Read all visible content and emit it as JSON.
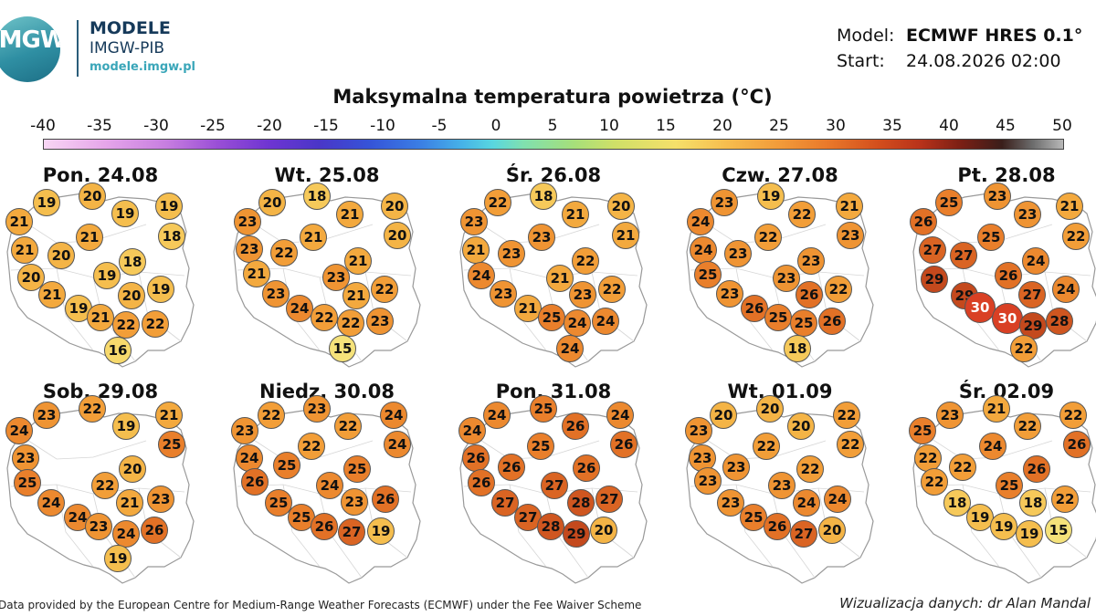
{
  "logo": {
    "mark_text": "IMGW",
    "title": "MODELE",
    "subtitle": "IMGW-PIB",
    "url": "modele.imgw.pl"
  },
  "model_info": {
    "model_label": "Model:",
    "model_value": "ECMWF HRES 0.1°",
    "start_label": "Start:",
    "start_value": "24.08.2026 02:00"
  },
  "title": "Maksymalna temperatura powietrza (°C)",
  "colorbar": {
    "labels": [
      "-40",
      "-35",
      "-30",
      "-25",
      "-20",
      "-15",
      "-10",
      "-5",
      "0",
      "5",
      "10",
      "15",
      "20",
      "25",
      "30",
      "35",
      "40",
      "45",
      "50"
    ]
  },
  "colors": {
    "t14": "#f3ec8e",
    "t15": "#f5e27a",
    "t16": "#f7d96c",
    "t18": "#f6c95a",
    "t19": "#f5be4e",
    "t20": "#f4b446",
    "t21": "#f3a93e",
    "t22": "#f29e38",
    "t23": "#ef9433",
    "t24": "#ec892f",
    "t25": "#e97f2b",
    "t26": "#e27126",
    "t27": "#da6423",
    "t28": "#cf5620",
    "t29": "#c4491d",
    "t30": "#d94024"
  },
  "days": [
    {
      "title": "Pon. 24.08",
      "temps": [
        19,
        20,
        19,
        19,
        21,
        18,
        21,
        21,
        20,
        18,
        20,
        19,
        19,
        20,
        21,
        19,
        21,
        22,
        22,
        16
      ]
    },
    {
      "title": "Wt. 25.08",
      "temps": [
        20,
        18,
        21,
        20,
        23,
        20,
        21,
        23,
        22,
        21,
        21,
        23,
        22,
        21,
        23,
        24,
        22,
        22,
        23,
        15
      ]
    },
    {
      "title": "Śr. 26.08",
      "temps": [
        22,
        18,
        21,
        20,
        23,
        21,
        23,
        21,
        23,
        22,
        24,
        21,
        22,
        23,
        23,
        21,
        25,
        24,
        24,
        24,
        14
      ]
    },
    {
      "title": "Czw. 27.08",
      "temps": [
        23,
        19,
        22,
        21,
        24,
        23,
        22,
        24,
        23,
        23,
        25,
        23,
        22,
        26,
        23,
        26,
        25,
        25,
        26,
        18
      ]
    },
    {
      "title": "Pt. 28.08",
      "temps": [
        25,
        23,
        21,
        23,
        26,
        25,
        22,
        27,
        27,
        24,
        29,
        26,
        29,
        27,
        24,
        30,
        30,
        29,
        28,
        22
      ]
    },
    {
      "title": "Sob. 29.08",
      "temps": [
        23,
        22,
        19,
        21,
        24,
        25,
        23,
        20,
        25,
        22,
        24,
        21,
        23,
        24,
        23,
        24,
        26,
        19
      ]
    },
    {
      "title": "Niedz. 30.08",
      "temps": [
        22,
        23,
        22,
        24,
        23,
        24,
        22,
        24,
        25,
        25,
        26,
        24,
        26,
        25,
        23,
        25,
        26,
        27,
        19
      ]
    },
    {
      "title": "Pon. 31.08",
      "temps": [
        24,
        25,
        26,
        24,
        24,
        26,
        25,
        26,
        26,
        26,
        26,
        27,
        27,
        27,
        28,
        27,
        28,
        29,
        20
      ]
    },
    {
      "title": "Wt. 01.09",
      "temps": [
        20,
        20,
        20,
        22,
        23,
        22,
        22,
        23,
        23,
        22,
        23,
        23,
        24,
        23,
        24,
        25,
        26,
        27,
        20
      ]
    },
    {
      "title": "Śr. 02.09",
      "temps": [
        23,
        21,
        22,
        22,
        25,
        26,
        24,
        22,
        22,
        26,
        22,
        25,
        22,
        18,
        18,
        19,
        19,
        19,
        15
      ]
    }
  ],
  "footer": {
    "left": "Data provided by the European Centre for Medium-Range Weather Forecasts (ECMWF) under the Fee Waiver Scheme",
    "right": "Wizualizacja danych: dr Alan Mandal"
  }
}
